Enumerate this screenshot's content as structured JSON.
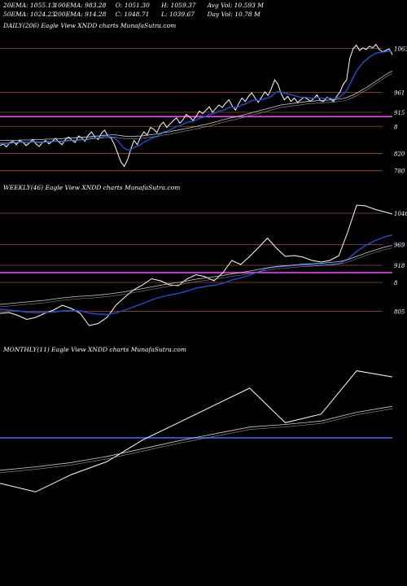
{
  "header": {
    "row1": [
      "20EMA: 1055.13",
      "100EMA: 983.28",
      "O: 1051.30",
      "H: 1059.37",
      "Avg Vol: 10.593 M"
    ],
    "row2": [
      "50EMA: 1024.23",
      "200EMA: 914.28",
      "C: 1048.71",
      "L: 1039.67",
      "Day Vol: 10.78 M"
    ]
  },
  "panels": {
    "daily_label": "DAILY(206) Eagle  View  XNDD charts MunafaSutra.com",
    "weekly_label": "WEEKLY(46) Eagle  View  XNDD charts MunafaSutra.com",
    "monthly_label": "MONTHLY(11) Eagle  View  XNDD charts MunafaSutra.com"
  },
  "colors": {
    "background": "#000000",
    "price": "#ffffff",
    "ema_fast": "#1f4fd8",
    "ema_slow": "#cccccc",
    "level": "#a0522d",
    "pivot": "#ff44ff",
    "blue_level": "#3366ff"
  },
  "chart_data": [
    {
      "type": "line",
      "title": "DAILY(206)",
      "levels": [
        1063,
        961,
        915,
        8,
        820,
        780
      ],
      "level_labels": [
        "1063",
        "961",
        "915",
        "8",
        "820",
        "780"
      ],
      "pivot": 905,
      "ylim": [
        770,
        1090
      ],
      "series": [
        {
          "role": "price",
          "values": [
            838,
            842,
            835,
            845,
            848,
            840,
            850,
            846,
            838,
            844,
            852,
            842,
            836,
            845,
            850,
            842,
            848,
            855,
            846,
            840,
            852,
            858,
            850,
            845,
            860,
            856,
            848,
            862,
            870,
            858,
            852,
            866,
            874,
            860,
            855,
            840,
            820,
            800,
            790,
            805,
            830,
            850,
            840,
            858,
            870,
            862,
            880,
            876,
            868,
            885,
            892,
            880,
            888,
            896,
            902,
            890,
            898,
            910,
            904,
            896,
            906,
            918,
            912,
            920,
            928,
            915,
            924,
            932,
            926,
            936,
            944,
            930,
            920,
            935,
            948,
            940,
            952,
            960,
            948,
            938,
            950,
            962,
            954,
            970,
            990,
            980,
            958,
            944,
            952,
            940,
            948,
            938,
            944,
            950,
            946,
            940,
            948,
            955,
            942,
            940,
            950,
            946,
            940,
            952,
            962,
            980,
            990,
            1040,
            1062,
            1070,
            1058,
            1064,
            1060,
            1068,
            1064,
            1072,
            1060,
            1055,
            1058,
            1062,
            1048
          ]
        },
        {
          "role": "ema_fast",
          "values": [
            842,
            843,
            842,
            843,
            845,
            845,
            846,
            846,
            845,
            845,
            847,
            846,
            845,
            845,
            847,
            846,
            847,
            849,
            848,
            847,
            848,
            850,
            850,
            849,
            851,
            852,
            851,
            853,
            856,
            856,
            855,
            857,
            860,
            859,
            858,
            855,
            849,
            840,
            832,
            828,
            829,
            834,
            836,
            840,
            846,
            849,
            854,
            857,
            859,
            864,
            869,
            871,
            874,
            878,
            882,
            884,
            887,
            891,
            893,
            894,
            897,
            901,
            903,
            906,
            910,
            911,
            914,
            918,
            919,
            922,
            926,
            927,
            926,
            928,
            932,
            934,
            938,
            942,
            943,
            942,
            944,
            947,
            948,
            952,
            959,
            963,
            962,
            959,
            958,
            955,
            954,
            951,
            950,
            950,
            949,
            948,
            948,
            950,
            948,
            947,
            948,
            948,
            946,
            948,
            951,
            957,
            965,
            980,
            995,
            1010,
            1020,
            1030,
            1036,
            1043,
            1047,
            1052,
            1053,
            1054,
            1055,
            1056,
            1055
          ]
        },
        {
          "role": "ema_slow",
          "values": [
            850,
            850,
            850,
            850,
            850,
            850,
            851,
            851,
            851,
            851,
            852,
            852,
            852,
            852,
            853,
            853,
            853,
            854,
            854,
            854,
            855,
            855,
            856,
            856,
            857,
            857,
            858,
            858,
            859,
            860,
            860,
            861,
            862,
            862,
            863,
            863,
            862,
            861,
            860,
            859,
            859,
            859,
            860,
            860,
            861,
            862,
            863,
            864,
            865,
            866,
            868,
            869,
            870,
            872,
            873,
            875,
            876,
            878,
            879,
            881,
            882,
            884,
            886,
            887,
            889,
            891,
            893,
            895,
            897,
            899,
            901,
            903,
            904,
            906,
            908,
            910,
            912,
            914,
            916,
            918,
            920,
            922,
            924,
            926,
            928,
            930,
            932,
            933,
            934,
            935,
            936,
            937,
            938,
            939,
            940,
            941,
            941,
            942,
            942,
            943,
            943,
            944,
            944,
            945,
            946,
            947,
            949,
            952,
            955,
            959,
            963,
            968,
            972,
            977,
            982,
            987,
            992,
            997,
            1002,
            1007,
            1010
          ]
        }
      ]
    },
    {
      "type": "line",
      "title": "WEEKLY(46)",
      "levels": [
        1046,
        969,
        918,
        8,
        805
      ],
      "level_labels": [
        "1046",
        "969",
        "918",
        "8",
        "805"
      ],
      "pivot": 900,
      "ylim": [
        760,
        1080
      ],
      "series": [
        {
          "role": "price",
          "values": [
            800,
            802,
            795,
            785,
            790,
            800,
            808,
            820,
            812,
            800,
            770,
            775,
            790,
            820,
            840,
            858,
            870,
            885,
            880,
            870,
            868,
            885,
            895,
            890,
            880,
            900,
            930,
            920,
            940,
            962,
            985,
            960,
            940,
            942,
            938,
            930,
            926,
            930,
            942,
            1000,
            1066,
            1064,
            1056,
            1050,
            1044
          ]
        },
        {
          "role": "ema_fast",
          "values": [
            810,
            808,
            806,
            803,
            802,
            802,
            803,
            806,
            807,
            806,
            801,
            798,
            797,
            801,
            808,
            816,
            824,
            833,
            840,
            845,
            849,
            855,
            862,
            866,
            869,
            874,
            882,
            887,
            894,
            902,
            911,
            914,
            916,
            918,
            919,
            919,
            919,
            920,
            922,
            933,
            952,
            967,
            978,
            987,
            993
          ]
        },
        {
          "role": "ema_slow",
          "values": [
            822,
            824,
            826,
            828,
            830,
            832,
            835,
            838,
            840,
            842,
            843,
            845,
            847,
            850,
            853,
            857,
            861,
            865,
            869,
            873,
            876,
            880,
            884,
            887,
            890,
            893,
            897,
            900,
            904,
            908,
            912,
            915,
            917,
            919,
            921,
            922,
            923,
            925,
            927,
            932,
            940,
            948,
            955,
            962,
            967
          ]
        }
      ]
    },
    {
      "type": "line",
      "title": "MONTHLY(11)",
      "levels": [],
      "pivot": 905,
      "ylim": [
        760,
        1080
      ],
      "series": [
        {
          "role": "price",
          "values": [
            800,
            780,
            820,
            850,
            900,
            940,
            980,
            1020,
            940,
            960,
            1060,
            1046
          ]
        },
        {
          "role": "ema_slow",
          "values": [
            830,
            838,
            848,
            862,
            880,
            898,
            914,
            930,
            936,
            944,
            964,
            978
          ]
        }
      ]
    }
  ]
}
